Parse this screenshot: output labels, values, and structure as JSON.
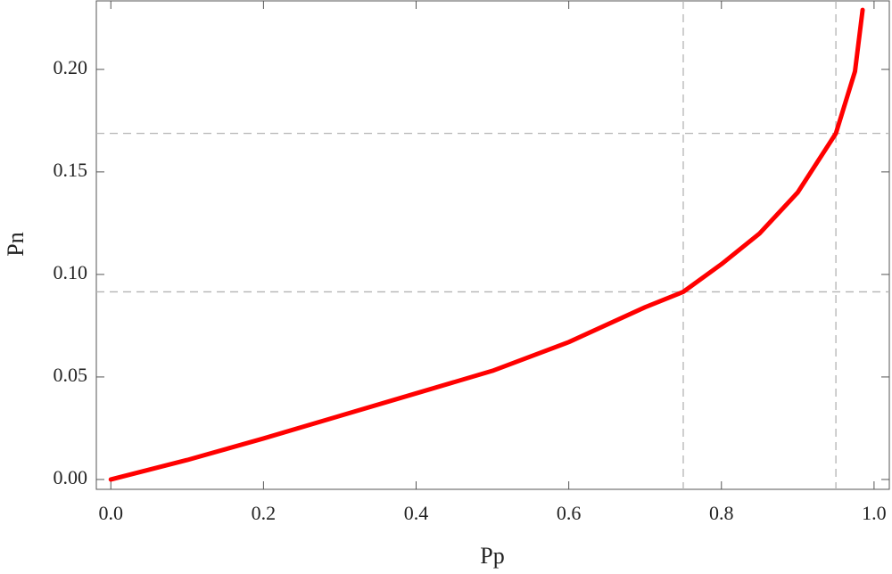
{
  "chart_data": {
    "type": "line",
    "x_label": "Pp",
    "y_label": "Pn",
    "x": [
      0.0,
      0.1,
      0.2,
      0.3,
      0.4,
      0.5,
      0.6,
      0.7,
      0.75,
      0.8,
      0.85,
      0.9,
      0.95,
      0.975,
      0.985
    ],
    "values": [
      0.0,
      0.0095,
      0.02,
      0.031,
      0.042,
      0.053,
      0.067,
      0.084,
      0.0915,
      0.105,
      0.12,
      0.14,
      0.1688,
      0.199,
      0.229
    ],
    "color": "#ff0000",
    "xlim": [
      -0.019,
      1.02
    ],
    "ylim": [
      -0.0048,
      0.2334
    ],
    "xticks": [
      {
        "value": 0,
        "label": "0.0"
      },
      {
        "value": 0.2,
        "label": "0.2"
      },
      {
        "value": 0.4,
        "label": "0.4"
      },
      {
        "value": 0.6,
        "label": "0.6"
      },
      {
        "value": 0.8,
        "label": "0.8"
      },
      {
        "value": 1,
        "label": "1.0"
      }
    ],
    "yticks": [
      {
        "value": 0,
        "label": "0.00"
      },
      {
        "value": 0.05,
        "label": "0.05"
      },
      {
        "value": 0.1,
        "label": "0.10"
      },
      {
        "value": 0.15,
        "label": "0.15"
      },
      {
        "value": 0.2,
        "label": "0.20"
      }
    ],
    "reference_lines": {
      "x": [
        0.75,
        0.95
      ],
      "y": [
        0.0915,
        0.1688
      ],
      "color": "#b4b4b4"
    }
  }
}
